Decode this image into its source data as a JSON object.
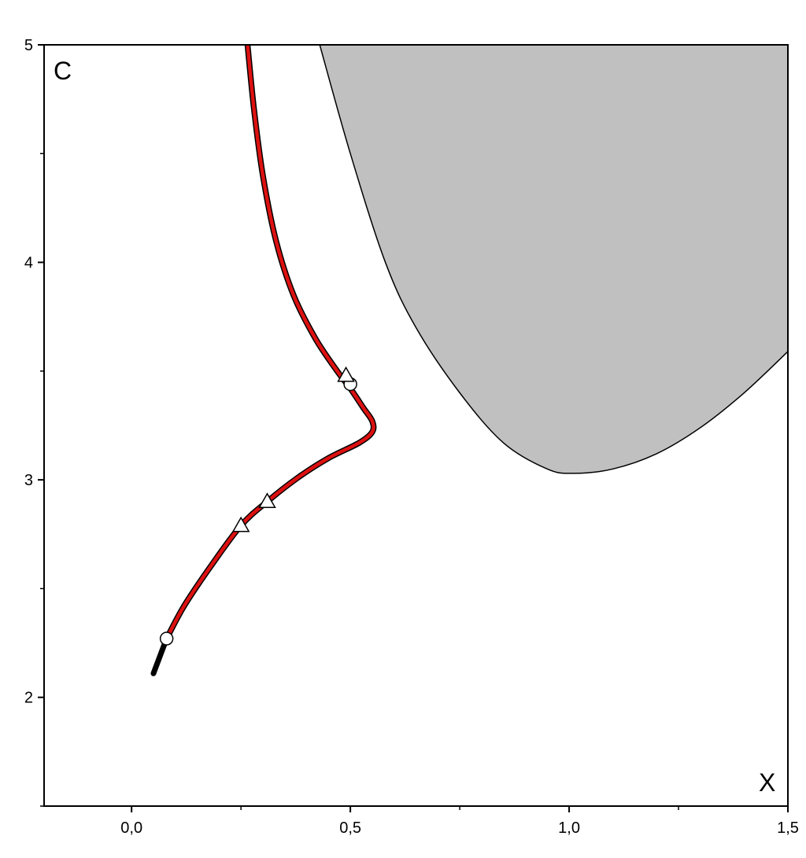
{
  "chart_data": {
    "type": "line",
    "xlabel": "X",
    "ylabel": "C",
    "xlim": [
      -0.2,
      1.5
    ],
    "ylim": [
      1.5,
      5.0
    ],
    "x_ticks_major": [
      0.0,
      0.5,
      1.0,
      1.5
    ],
    "x_tick_labels": [
      "0,0",
      "0,5",
      "1,0",
      "1,5"
    ],
    "x_ticks_minor": [
      -0.25,
      0.25,
      0.75,
      1.25
    ],
    "y_ticks_major": [
      2,
      3,
      4,
      5
    ],
    "y_tick_labels": [
      "2",
      "3",
      "4",
      "5"
    ],
    "y_ticks_minor": [
      1.5,
      2.5,
      3.5,
      4.5
    ],
    "grid": false,
    "shaded_region": {
      "fill": "#c0c0c0",
      "boundary": [
        {
          "x": 0.43,
          "C": 5.0
        },
        {
          "x": 0.5,
          "C": 4.5
        },
        {
          "x": 0.58,
          "C": 4.0
        },
        {
          "x": 0.65,
          "C": 3.7
        },
        {
          "x": 0.75,
          "C": 3.4
        },
        {
          "x": 0.85,
          "C": 3.17
        },
        {
          "x": 0.95,
          "C": 3.05
        },
        {
          "x": 1.01,
          "C": 3.03
        },
        {
          "x": 1.1,
          "C": 3.05
        },
        {
          "x": 1.2,
          "C": 3.12
        },
        {
          "x": 1.3,
          "C": 3.24
        },
        {
          "x": 1.4,
          "C": 3.4
        },
        {
          "x": 1.5,
          "C": 3.59
        }
      ]
    },
    "series": [
      {
        "color": "#000000",
        "points": [
          {
            "x": 0.05,
            "C": 2.11
          },
          {
            "x": 0.08,
            "C": 2.27
          }
        ]
      },
      {
        "color": "#dd1111",
        "points": [
          {
            "x": 0.08,
            "C": 2.27
          },
          {
            "x": 0.12,
            "C": 2.42
          },
          {
            "x": 0.18,
            "C": 2.6
          },
          {
            "x": 0.25,
            "C": 2.79
          },
          {
            "x": 0.31,
            "C": 2.9
          },
          {
            "x": 0.38,
            "C": 3.01
          },
          {
            "x": 0.45,
            "C": 3.1
          },
          {
            "x": 0.52,
            "C": 3.17
          },
          {
            "x": 0.55,
            "C": 3.22
          },
          {
            "x": 0.55,
            "C": 3.27
          },
          {
            "x": 0.53,
            "C": 3.33
          },
          {
            "x": 0.5,
            "C": 3.42
          },
          {
            "x": 0.47,
            "C": 3.5
          },
          {
            "x": 0.42,
            "C": 3.65
          },
          {
            "x": 0.37,
            "C": 3.85
          },
          {
            "x": 0.33,
            "C": 4.1
          },
          {
            "x": 0.3,
            "C": 4.4
          },
          {
            "x": 0.28,
            "C": 4.7
          },
          {
            "x": 0.265,
            "C": 5.0
          }
        ]
      }
    ],
    "markers": {
      "circles": [
        {
          "x": 0.08,
          "C": 2.27
        },
        {
          "x": 0.5,
          "C": 3.44
        }
      ],
      "triangles": [
        {
          "x": 0.25,
          "C": 2.79
        },
        {
          "x": 0.31,
          "C": 2.9
        },
        {
          "x": 0.49,
          "C": 3.48
        }
      ]
    }
  }
}
